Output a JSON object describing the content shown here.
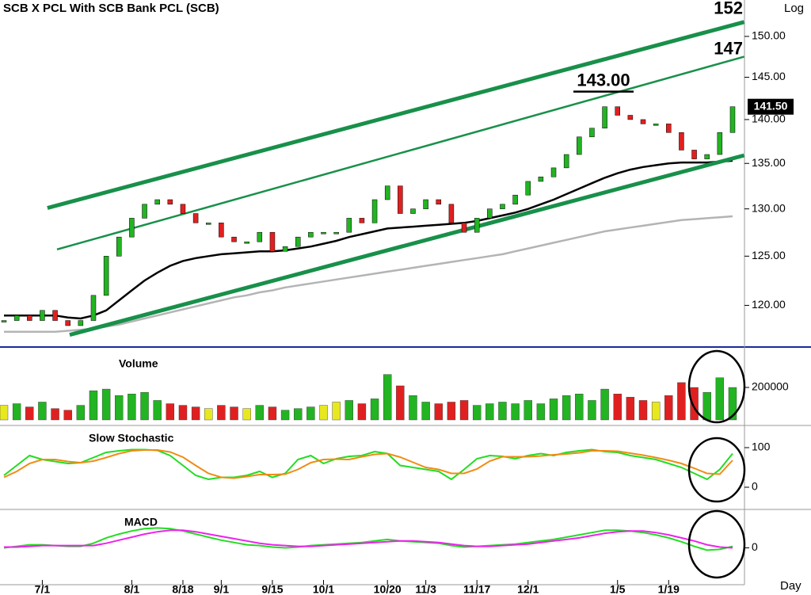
{
  "chart_data": [
    {
      "type": "candlestick",
      "title": "SCB X PCL With SCB Bank PCL (SCB)",
      "scale_label": "Log",
      "x_label": "Day",
      "log": true,
      "categories": [
        null,
        null,
        null,
        "7/1",
        null,
        null,
        null,
        null,
        null,
        null,
        "8/1",
        null,
        null,
        null,
        "8/18",
        null,
        null,
        "9/1",
        null,
        null,
        null,
        "9/15",
        null,
        null,
        null,
        "10/1",
        null,
        null,
        null,
        null,
        "10/20",
        null,
        null,
        "11/3",
        null,
        null,
        null,
        "11/17",
        null,
        null,
        null,
        "12/1",
        null,
        null,
        null,
        null,
        null,
        null,
        "1/5",
        null,
        null,
        null,
        "1/19",
        null,
        null,
        null,
        null,
        null
      ],
      "values": [
        118.5,
        119,
        118.5,
        119.5,
        118.5,
        118,
        118.5,
        121,
        125,
        127,
        129,
        130.5,
        131,
        130.5,
        129.5,
        128.5,
        128.5,
        127,
        126.5,
        126.5,
        127.5,
        125.5,
        126,
        127,
        127.5,
        127.5,
        127.5,
        129,
        128.5,
        131,
        132.5,
        129.5,
        130,
        131,
        130.5,
        128.5,
        127.5,
        129,
        130,
        130.5,
        131.5,
        133,
        133.5,
        134.5,
        136,
        138,
        139,
        141.5,
        140.5,
        140,
        139.5,
        139.5,
        138.5,
        136.5,
        135.5,
        136,
        138.5,
        141.5
      ],
      "up_color": "#22b422",
      "down_color": "#e02020",
      "overlays": [
        {
          "color": "#000000",
          "values": [
            119,
            119,
            119,
            119,
            119,
            118.8,
            118.7,
            119,
            119.5,
            120.5,
            121.5,
            122.5,
            123.3,
            124,
            124.5,
            124.8,
            125,
            125.2,
            125.3,
            125.4,
            125.5,
            125.5,
            125.6,
            125.8,
            126,
            126.3,
            126.6,
            127,
            127.3,
            127.6,
            127.9,
            128,
            128.1,
            128.2,
            128.3,
            128.4,
            128.5,
            128.7,
            129,
            129.3,
            129.6,
            130,
            130.5,
            131,
            131.6,
            132.2,
            132.8,
            133.4,
            133.9,
            134.3,
            134.6,
            134.8,
            135,
            135.1,
            135.1,
            135.1,
            135.2,
            135.3
          ]
        },
        {
          "color": "#b4b4b4",
          "values": [
            117.4,
            117.4,
            117.4,
            117.4,
            117.4,
            117.5,
            117.6,
            117.7,
            117.9,
            118.1,
            118.4,
            118.7,
            119,
            119.3,
            119.6,
            119.9,
            120.2,
            120.5,
            120.8,
            121,
            121.3,
            121.5,
            121.8,
            122,
            122.2,
            122.4,
            122.6,
            122.8,
            123,
            123.2,
            123.4,
            123.6,
            123.8,
            124,
            124.2,
            124.4,
            124.6,
            124.8,
            125,
            125.2,
            125.5,
            125.8,
            126.1,
            126.4,
            126.7,
            127,
            127.3,
            127.6,
            127.8,
            128,
            128.2,
            128.4,
            128.6,
            128.8,
            128.9,
            129,
            129.1,
            129.2
          ]
        }
      ],
      "trendlines": [
        {
          "color": "#18904a",
          "style": "thick",
          "points": [
            [
              3.4,
              130.1
            ],
            [
              57.9,
              151.8
            ]
          ]
        },
        {
          "color": "#18904a",
          "style": "thin",
          "points": [
            [
              4.15,
              125.7
            ],
            [
              57.9,
              147.5
            ]
          ]
        },
        {
          "color": "#18904a",
          "style": "thick",
          "points": [
            [
              5.14,
              117.1
            ],
            [
              57.9,
              135.9
            ]
          ]
        }
      ],
      "annotations": [
        {
          "value": 152,
          "label": "152"
        },
        {
          "value": 147,
          "label": "147"
        },
        {
          "value": 143,
          "label": "143.00"
        }
      ],
      "price_tag": {
        "value": 141.5,
        "label": "141.50"
      },
      "ylim": [
        116,
        154.6
      ],
      "yticks": [
        {
          "value": 120,
          "label": "120.00"
        },
        {
          "value": 125,
          "label": "125.00"
        },
        {
          "value": 130,
          "label": "130.00"
        },
        {
          "value": 135,
          "label": "135.00"
        },
        {
          "value": 140,
          "label": "140.00"
        },
        {
          "value": 145,
          "label": "145.00"
        },
        {
          "value": 150,
          "label": "150.00"
        }
      ]
    },
    {
      "type": "bar",
      "title": "Volume",
      "values": [
        90000,
        100000,
        80000,
        110000,
        70000,
        60000,
        90000,
        180000,
        190000,
        150000,
        160000,
        170000,
        120000,
        100000,
        90000,
        80000,
        70000,
        90000,
        80000,
        70000,
        90000,
        80000,
        60000,
        70000,
        80000,
        90000,
        110000,
        120000,
        100000,
        130000,
        280000,
        210000,
        150000,
        110000,
        100000,
        110000,
        120000,
        90000,
        100000,
        110000,
        100000,
        120000,
        100000,
        130000,
        150000,
        160000,
        120000,
        190000,
        160000,
        140000,
        120000,
        110000,
        150000,
        230000,
        200000,
        170000,
        260000,
        200000
      ],
      "ylim": [
        0,
        415000
      ],
      "yticks": [
        200000
      ]
    },
    {
      "type": "line",
      "title": "Slow Stochastic",
      "series": [
        {
          "color": "#22dd22",
          "values": [
            30,
            55,
            80,
            70,
            65,
            60,
            62,
            75,
            88,
            92,
            95,
            95,
            93,
            80,
            55,
            30,
            20,
            25,
            25,
            30,
            40,
            25,
            35,
            70,
            80,
            60,
            72,
            78,
            80,
            90,
            85,
            55,
            50,
            45,
            40,
            20,
            45,
            72,
            80,
            78,
            72,
            80,
            85,
            80,
            88,
            92,
            95,
            90,
            88,
            80,
            75,
            70,
            60,
            50,
            35,
            20,
            45,
            85
          ]
        },
        {
          "color": "#f08c14",
          "values": [
            25,
            40,
            60,
            70,
            70,
            65,
            62,
            66,
            75,
            85,
            92,
            94,
            94,
            89,
            76,
            55,
            35,
            25,
            23,
            27,
            32,
            32,
            33,
            45,
            62,
            70,
            71,
            70,
            77,
            83,
            85,
            76,
            63,
            50,
            45,
            35,
            35,
            46,
            66,
            77,
            77,
            77,
            79,
            82,
            84,
            87,
            92,
            92,
            91,
            86,
            81,
            75,
            68,
            60,
            48,
            35,
            33,
            68
          ]
        }
      ],
      "ylim": [
        -50,
        144
      ],
      "yticks": [
        0,
        100
      ]
    },
    {
      "type": "line",
      "title": "MACD",
      "series": [
        {
          "color": "#22dd22",
          "values": [
            0,
            0.2,
            0.4,
            0.4,
            0.3,
            0.2,
            0.2,
            0.6,
            1.3,
            1.8,
            2.2,
            2.5,
            2.6,
            2.5,
            2.2,
            1.8,
            1.4,
            1,
            0.7,
            0.4,
            0.3,
            0.1,
            0,
            0.1,
            0.3,
            0.4,
            0.5,
            0.6,
            0.7,
            0.9,
            1.1,
            0.9,
            0.8,
            0.7,
            0.6,
            0.3,
            0.1,
            0.2,
            0.3,
            0.4,
            0.5,
            0.7,
            0.9,
            1.1,
            1.4,
            1.7,
            2,
            2.3,
            2.3,
            2.2,
            2,
            1.7,
            1.3,
            0.8,
            0.2,
            -0.3,
            -0.2,
            0.2
          ]
        },
        {
          "color": "#ee22ee",
          "values": [
            0.1,
            0.1,
            0.2,
            0.3,
            0.3,
            0.3,
            0.3,
            0.3,
            0.6,
            1,
            1.4,
            1.8,
            2.1,
            2.3,
            2.3,
            2.1,
            1.8,
            1.5,
            1.2,
            0.9,
            0.6,
            0.4,
            0.3,
            0.2,
            0.2,
            0.3,
            0.4,
            0.5,
            0.6,
            0.7,
            0.8,
            0.9,
            0.9,
            0.8,
            0.7,
            0.5,
            0.3,
            0.2,
            0.2,
            0.3,
            0.4,
            0.5,
            0.7,
            0.9,
            1.1,
            1.3,
            1.6,
            1.9,
            2.1,
            2.2,
            2.2,
            2,
            1.7,
            1.3,
            0.9,
            0.4,
            0.1,
            0
          ]
        }
      ],
      "ylim": [
        -4.5,
        4.5
      ],
      "yticks": [
        0
      ]
    }
  ]
}
